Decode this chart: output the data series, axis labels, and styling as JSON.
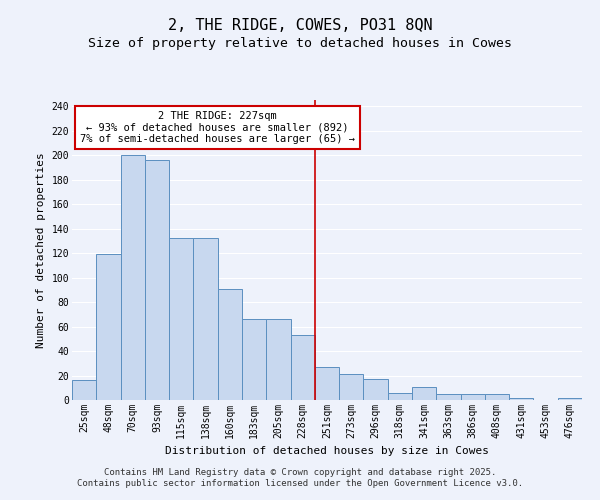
{
  "title": "2, THE RIDGE, COWES, PO31 8QN",
  "subtitle": "Size of property relative to detached houses in Cowes",
  "xlabel": "Distribution of detached houses by size in Cowes",
  "ylabel": "Number of detached properties",
  "categories": [
    "25sqm",
    "48sqm",
    "70sqm",
    "93sqm",
    "115sqm",
    "138sqm",
    "160sqm",
    "183sqm",
    "205sqm",
    "228sqm",
    "251sqm",
    "273sqm",
    "296sqm",
    "318sqm",
    "341sqm",
    "363sqm",
    "386sqm",
    "408sqm",
    "431sqm",
    "453sqm",
    "476sqm"
  ],
  "values": [
    16,
    119,
    200,
    196,
    132,
    132,
    91,
    66,
    66,
    53,
    27,
    21,
    17,
    6,
    11,
    5,
    5,
    5,
    2,
    0,
    2
  ],
  "bar_color": "#c8d8ef",
  "bar_edge_color": "#5b8fc0",
  "vline_x_index": 9.5,
  "vline_color": "#cc0000",
  "annotation_text": "2 THE RIDGE: 227sqm\n← 93% of detached houses are smaller (892)\n7% of semi-detached houses are larger (65) →",
  "annotation_box_color": "#ffffff",
  "annotation_box_edge": "#cc0000",
  "ylim": [
    0,
    245
  ],
  "yticks": [
    0,
    20,
    40,
    60,
    80,
    100,
    120,
    140,
    160,
    180,
    200,
    220,
    240
  ],
  "footer_text": "Contains HM Land Registry data © Crown copyright and database right 2025.\nContains public sector information licensed under the Open Government Licence v3.0.",
  "background_color": "#eef2fb",
  "grid_color": "#ffffff",
  "title_fontsize": 11,
  "subtitle_fontsize": 9.5,
  "axis_label_fontsize": 8,
  "tick_fontsize": 7,
  "annotation_fontsize": 7.5,
  "footer_fontsize": 6.5
}
